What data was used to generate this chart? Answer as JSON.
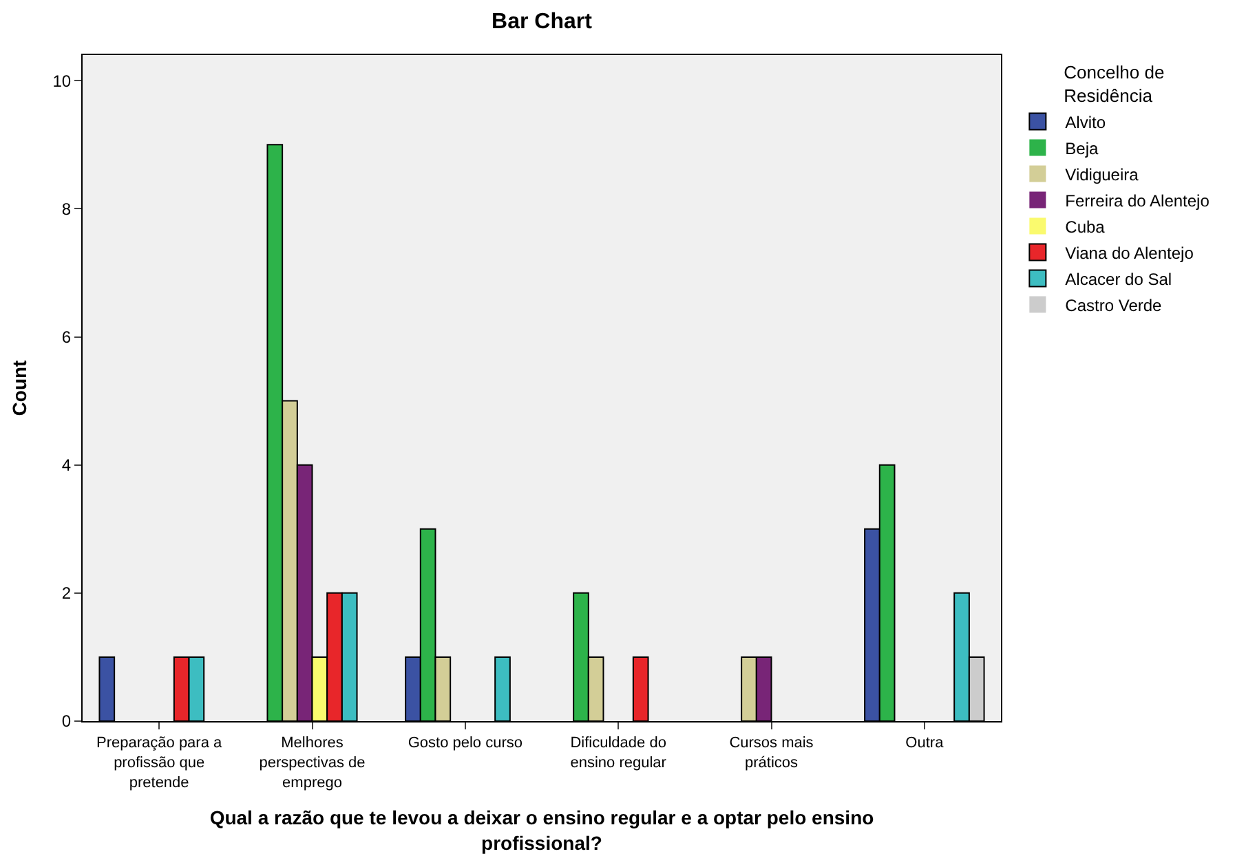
{
  "chart_data": {
    "type": "bar",
    "title": "Bar Chart",
    "xlabel": "Qual a razão que te levou a deixar o ensino regular e a optar pelo ensino profissional?",
    "ylabel": "Count",
    "legend_title": "Concelho de Residência",
    "categories": [
      "Preparação para a profissão que pretende",
      "Melhores perspectivas de emprego",
      "Gosto pelo curso",
      "Dificuldade do ensino regular",
      "Cursos mais práticos",
      "Outra"
    ],
    "series": [
      {
        "name": "Alvito",
        "color": "#3b52a3",
        "values": [
          1,
          0,
          1,
          0,
          0,
          3
        ]
      },
      {
        "name": "Beja",
        "color": "#2db34a",
        "values": [
          0,
          9,
          3,
          2,
          0,
          4
        ]
      },
      {
        "name": "Vidigueira",
        "color": "#d3ce97",
        "values": [
          0,
          5,
          1,
          1,
          1,
          0
        ]
      },
      {
        "name": "Ferreira do Alentejo",
        "color": "#782577",
        "values": [
          0,
          4,
          0,
          0,
          1,
          0
        ]
      },
      {
        "name": "Cuba",
        "color": "#fafa6e",
        "values": [
          0,
          1,
          0,
          0,
          0,
          0
        ]
      },
      {
        "name": "Viana do Alentejo",
        "color": "#e8262a",
        "values": [
          1,
          2,
          0,
          1,
          0,
          0
        ]
      },
      {
        "name": "Alcacer do Sal",
        "color": "#3dbdc1",
        "values": [
          1,
          2,
          1,
          0,
          0,
          2
        ]
      },
      {
        "name": "Castro Verde",
        "color": "#cccccc",
        "values": [
          0,
          0,
          0,
          0,
          0,
          1
        ]
      }
    ],
    "ylim": [
      0,
      10.4
    ],
    "yticks": [
      0,
      2,
      4,
      6,
      8,
      10
    ],
    "grid": false,
    "legend": "right"
  }
}
